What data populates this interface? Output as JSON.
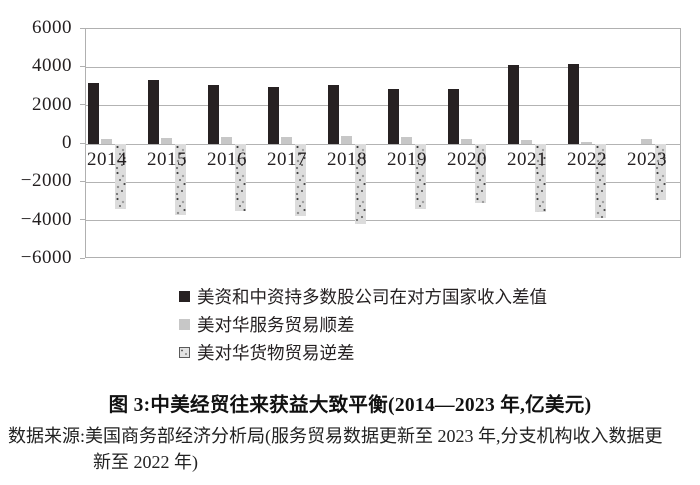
{
  "figure": {
    "caption": "图 3:中美经贸往来获益大致平衡(2014—2023 年,亿美元)",
    "source_line1": "数据来源:美国商务部经济分析局(服务贸易数据更新至 2023 年,分支机构收入数据更",
    "source_line2": "新至 2022 年)"
  },
  "chart_data": {
    "type": "bar",
    "title": "图 3:中美经贸往来获益大致平衡(2014—2023 年,亿美元)",
    "unit": "亿美元",
    "categories": [
      "2014",
      "2015",
      "2016",
      "2017",
      "2018",
      "2019",
      "2020",
      "2021",
      "2022",
      "2023"
    ],
    "series": [
      {
        "name": "美资和中资持多数股公司在对方国家收入差值",
        "style": "solid-black",
        "color": "#272122",
        "values": [
          3200,
          3350,
          3100,
          3000,
          3100,
          2850,
          2850,
          4100,
          4150,
          null
        ]
      },
      {
        "name": "美对华服务贸易顺差",
        "style": "solid-gray",
        "color": "#c7c7c7",
        "values": [
          240,
          290,
          350,
          390,
          400,
          360,
          250,
          190,
          130,
          270
        ]
      },
      {
        "name": "美对华货物贸易逆差",
        "style": "speckle-texture",
        "color": "#dcdcdc",
        "values": [
          -3400,
          -3700,
          -3500,
          -3750,
          -4150,
          -3400,
          -3100,
          -3550,
          -3850,
          -2900
        ]
      }
    ],
    "ylim": [
      -6000,
      6000
    ],
    "ytick_step": 2000,
    "ytick_labels": [
      "6000",
      "4000",
      "2000",
      "0",
      "−2000",
      "−4000",
      "−6000"
    ],
    "grid": true,
    "legend_position": "below-plot-left"
  }
}
